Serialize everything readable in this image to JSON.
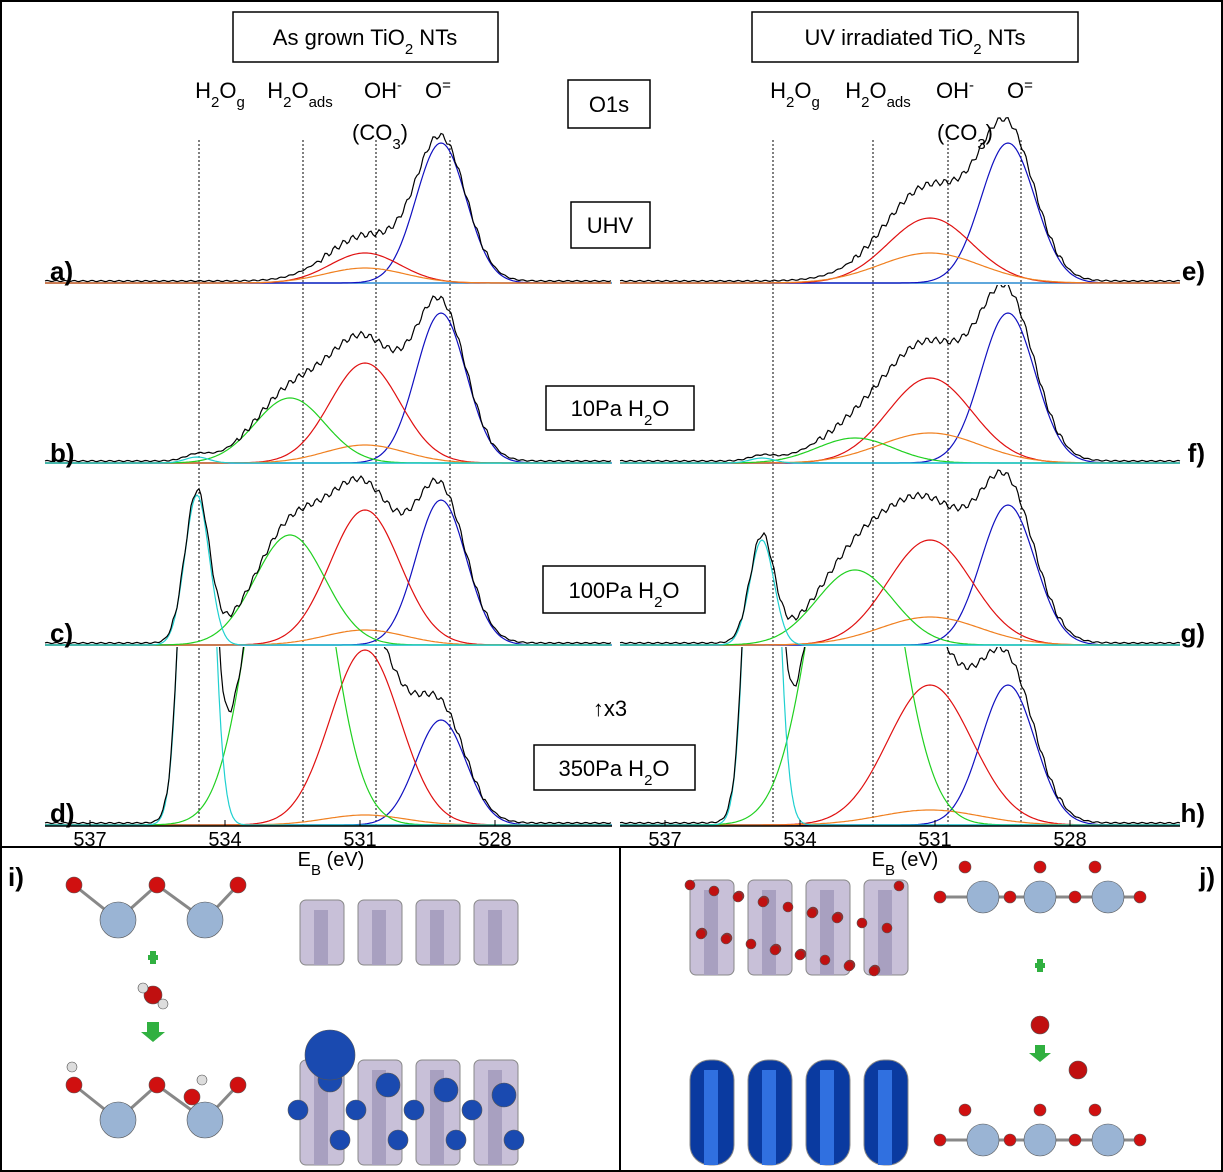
{
  "top_boxes": [
    [
      {
        "text": "As grown TiO"
      },
      {
        "text": "2",
        "sub": true
      },
      {
        "text": " NTs"
      }
    ],
    [
      {
        "text": "UV irradiated TiO"
      },
      {
        "text": "2",
        "sub": true
      },
      {
        "text": " NTs"
      }
    ]
  ],
  "peak_labels": [
    [
      {
        "text": "H"
      },
      {
        "text": "2",
        "sub": true
      },
      {
        "text": "O"
      },
      {
        "text": "g",
        "sub": true
      }
    ],
    [
      {
        "text": "H"
      },
      {
        "text": "2",
        "sub": true
      },
      {
        "text": "O"
      },
      {
        "text": "ads",
        "sub": true
      }
    ],
    [
      {
        "text": "OH"
      },
      {
        "text": "-",
        "sup": true
      }
    ],
    [
      {
        "text": "O"
      },
      {
        "text": "=",
        "sup": true
      }
    ],
    [
      {
        "text": "(CO"
      },
      {
        "text": "3",
        "sub": true
      },
      {
        "text": ")"
      }
    ]
  ],
  "region": "O1s",
  "conditions": [
    [
      {
        "text": "UHV"
      }
    ],
    [
      {
        "text": "10Pa H"
      },
      {
        "text": "2",
        "sub": true
      },
      {
        "text": "O"
      }
    ],
    [
      {
        "text": "100Pa H"
      },
      {
        "text": "2",
        "sub": true
      },
      {
        "text": "O"
      }
    ],
    [
      {
        "text": "350Pa H"
      },
      {
        "text": "2",
        "sub": true
      },
      {
        "text": "O"
      }
    ]
  ],
  "scale_note": "↑x3",
  "panel_labels": [
    "a)",
    "b)",
    "c)",
    "d)",
    "e)",
    "f)",
    "g)",
    "h)",
    "i)",
    "j)"
  ],
  "x_axis": {
    "ticks": [
      537,
      534,
      531,
      528
    ],
    "label": [
      {
        "text": "E"
      },
      {
        "text": "B",
        "sub": true
      },
      {
        "text": " (eV)"
      }
    ]
  }
}
